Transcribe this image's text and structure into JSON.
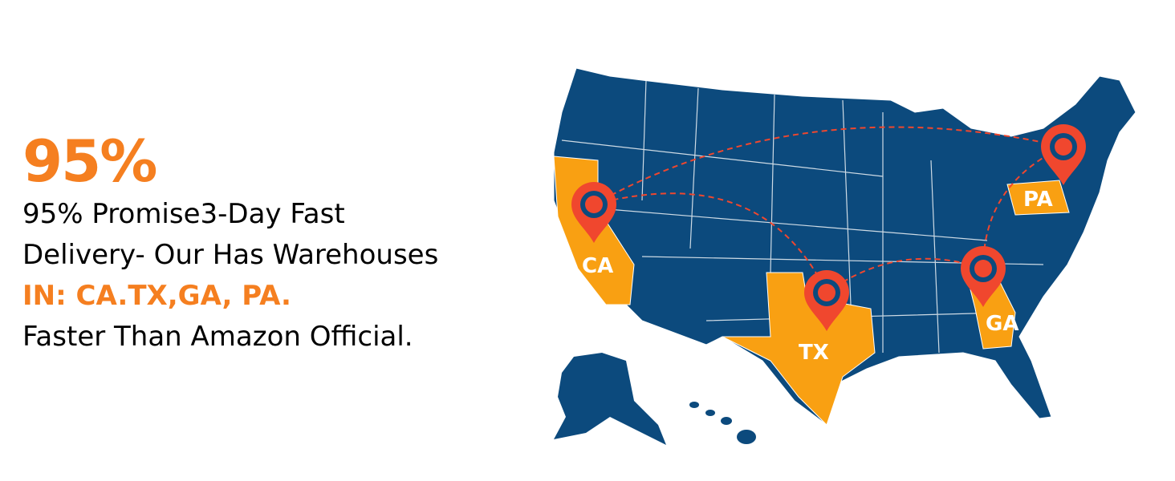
{
  "headline": "95%",
  "lines": [
    "95% Promise3-Day Fast",
    "Delivery- Our Has Warehouses",
    "IN: CA.TX,GA, PA.",
    "Faster Than Amazon Official."
  ],
  "map": {
    "warehouses": [
      "CA",
      "TX",
      "GA",
      "PA"
    ],
    "colors": {
      "land": "#0c4a7d",
      "highlight": "#f9a012",
      "pin": "#f0472e",
      "text_accent": "#f57f20"
    }
  }
}
